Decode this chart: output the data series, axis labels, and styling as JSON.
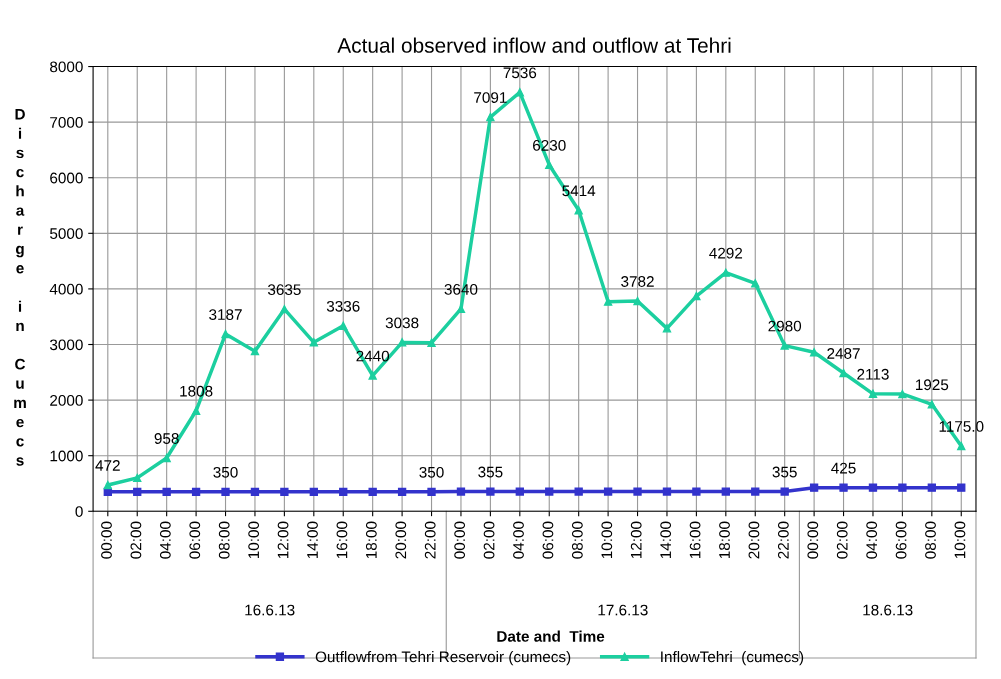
{
  "chart_data": {
    "type": "line",
    "title": "Actual observed inflow and outflow at Tehri",
    "xlabel": "Date and  Time",
    "ylabel": "Discharge in Cumecs",
    "categories": [
      "00:00",
      "02:00",
      "04:00",
      "06:00",
      "08:00",
      "10:00",
      "12:00",
      "14:00",
      "16:00",
      "18:00",
      "20:00",
      "22:00",
      "00:00",
      "02:00",
      "04:00",
      "06:00",
      "08:00",
      "10:00",
      "12:00",
      "14:00",
      "16:00",
      "18:00",
      "20:00",
      "22:00",
      "00:00",
      "02:00",
      "04:00",
      "06:00",
      "08:00",
      "10:00"
    ],
    "annotations": [
      "16.6.13",
      "17.6.13",
      "18.6.13"
    ],
    "series": [
      {
        "name": "Outflowfrom Tehri Reservoir (cumecs)",
        "color": "#3333cc",
        "marker": "square",
        "values": [
          350,
          350,
          350,
          350,
          350,
          350,
          350,
          350,
          350,
          350,
          350,
          350,
          355,
          355,
          355,
          355,
          355,
          355,
          355,
          355,
          355,
          355,
          355,
          355,
          425,
          425,
          425,
          425,
          425,
          425
        ],
        "value_labels": [
          null,
          null,
          null,
          null,
          "350",
          null,
          null,
          null,
          null,
          null,
          null,
          "350",
          null,
          "355",
          null,
          null,
          null,
          null,
          null,
          null,
          null,
          null,
          null,
          "355",
          null,
          "425",
          null,
          null,
          null,
          null
        ]
      },
      {
        "name": "InflowTehri  (cumecs)",
        "color": "#1ccf9f",
        "marker": "triangle",
        "values": [
          472,
          600,
          958,
          1808,
          3187,
          2880,
          3635,
          3040,
          3336,
          2440,
          3038,
          3030,
          3640,
          7091,
          7536,
          6230,
          5414,
          3770,
          3782,
          3290,
          3870,
          4292,
          4100,
          2980,
          2860,
          2487,
          2113,
          2110,
          1925,
          1175
        ],
        "value_labels": [
          "472",
          null,
          "958",
          "1808",
          "3187",
          null,
          "3635",
          null,
          "3336",
          "2440",
          "3038",
          null,
          "3640",
          "7091",
          "7536",
          "6230",
          "5414",
          null,
          "3782",
          null,
          null,
          "4292",
          null,
          "2980",
          null,
          "2487",
          "2113",
          null,
          "1925",
          "1175.0"
        ]
      }
    ],
    "ylim": [
      0,
      8000
    ],
    "yticks": [
      0,
      1000,
      2000,
      3000,
      4000,
      5000,
      6000,
      7000,
      8000
    ],
    "grid": true,
    "legend": "bottom"
  }
}
